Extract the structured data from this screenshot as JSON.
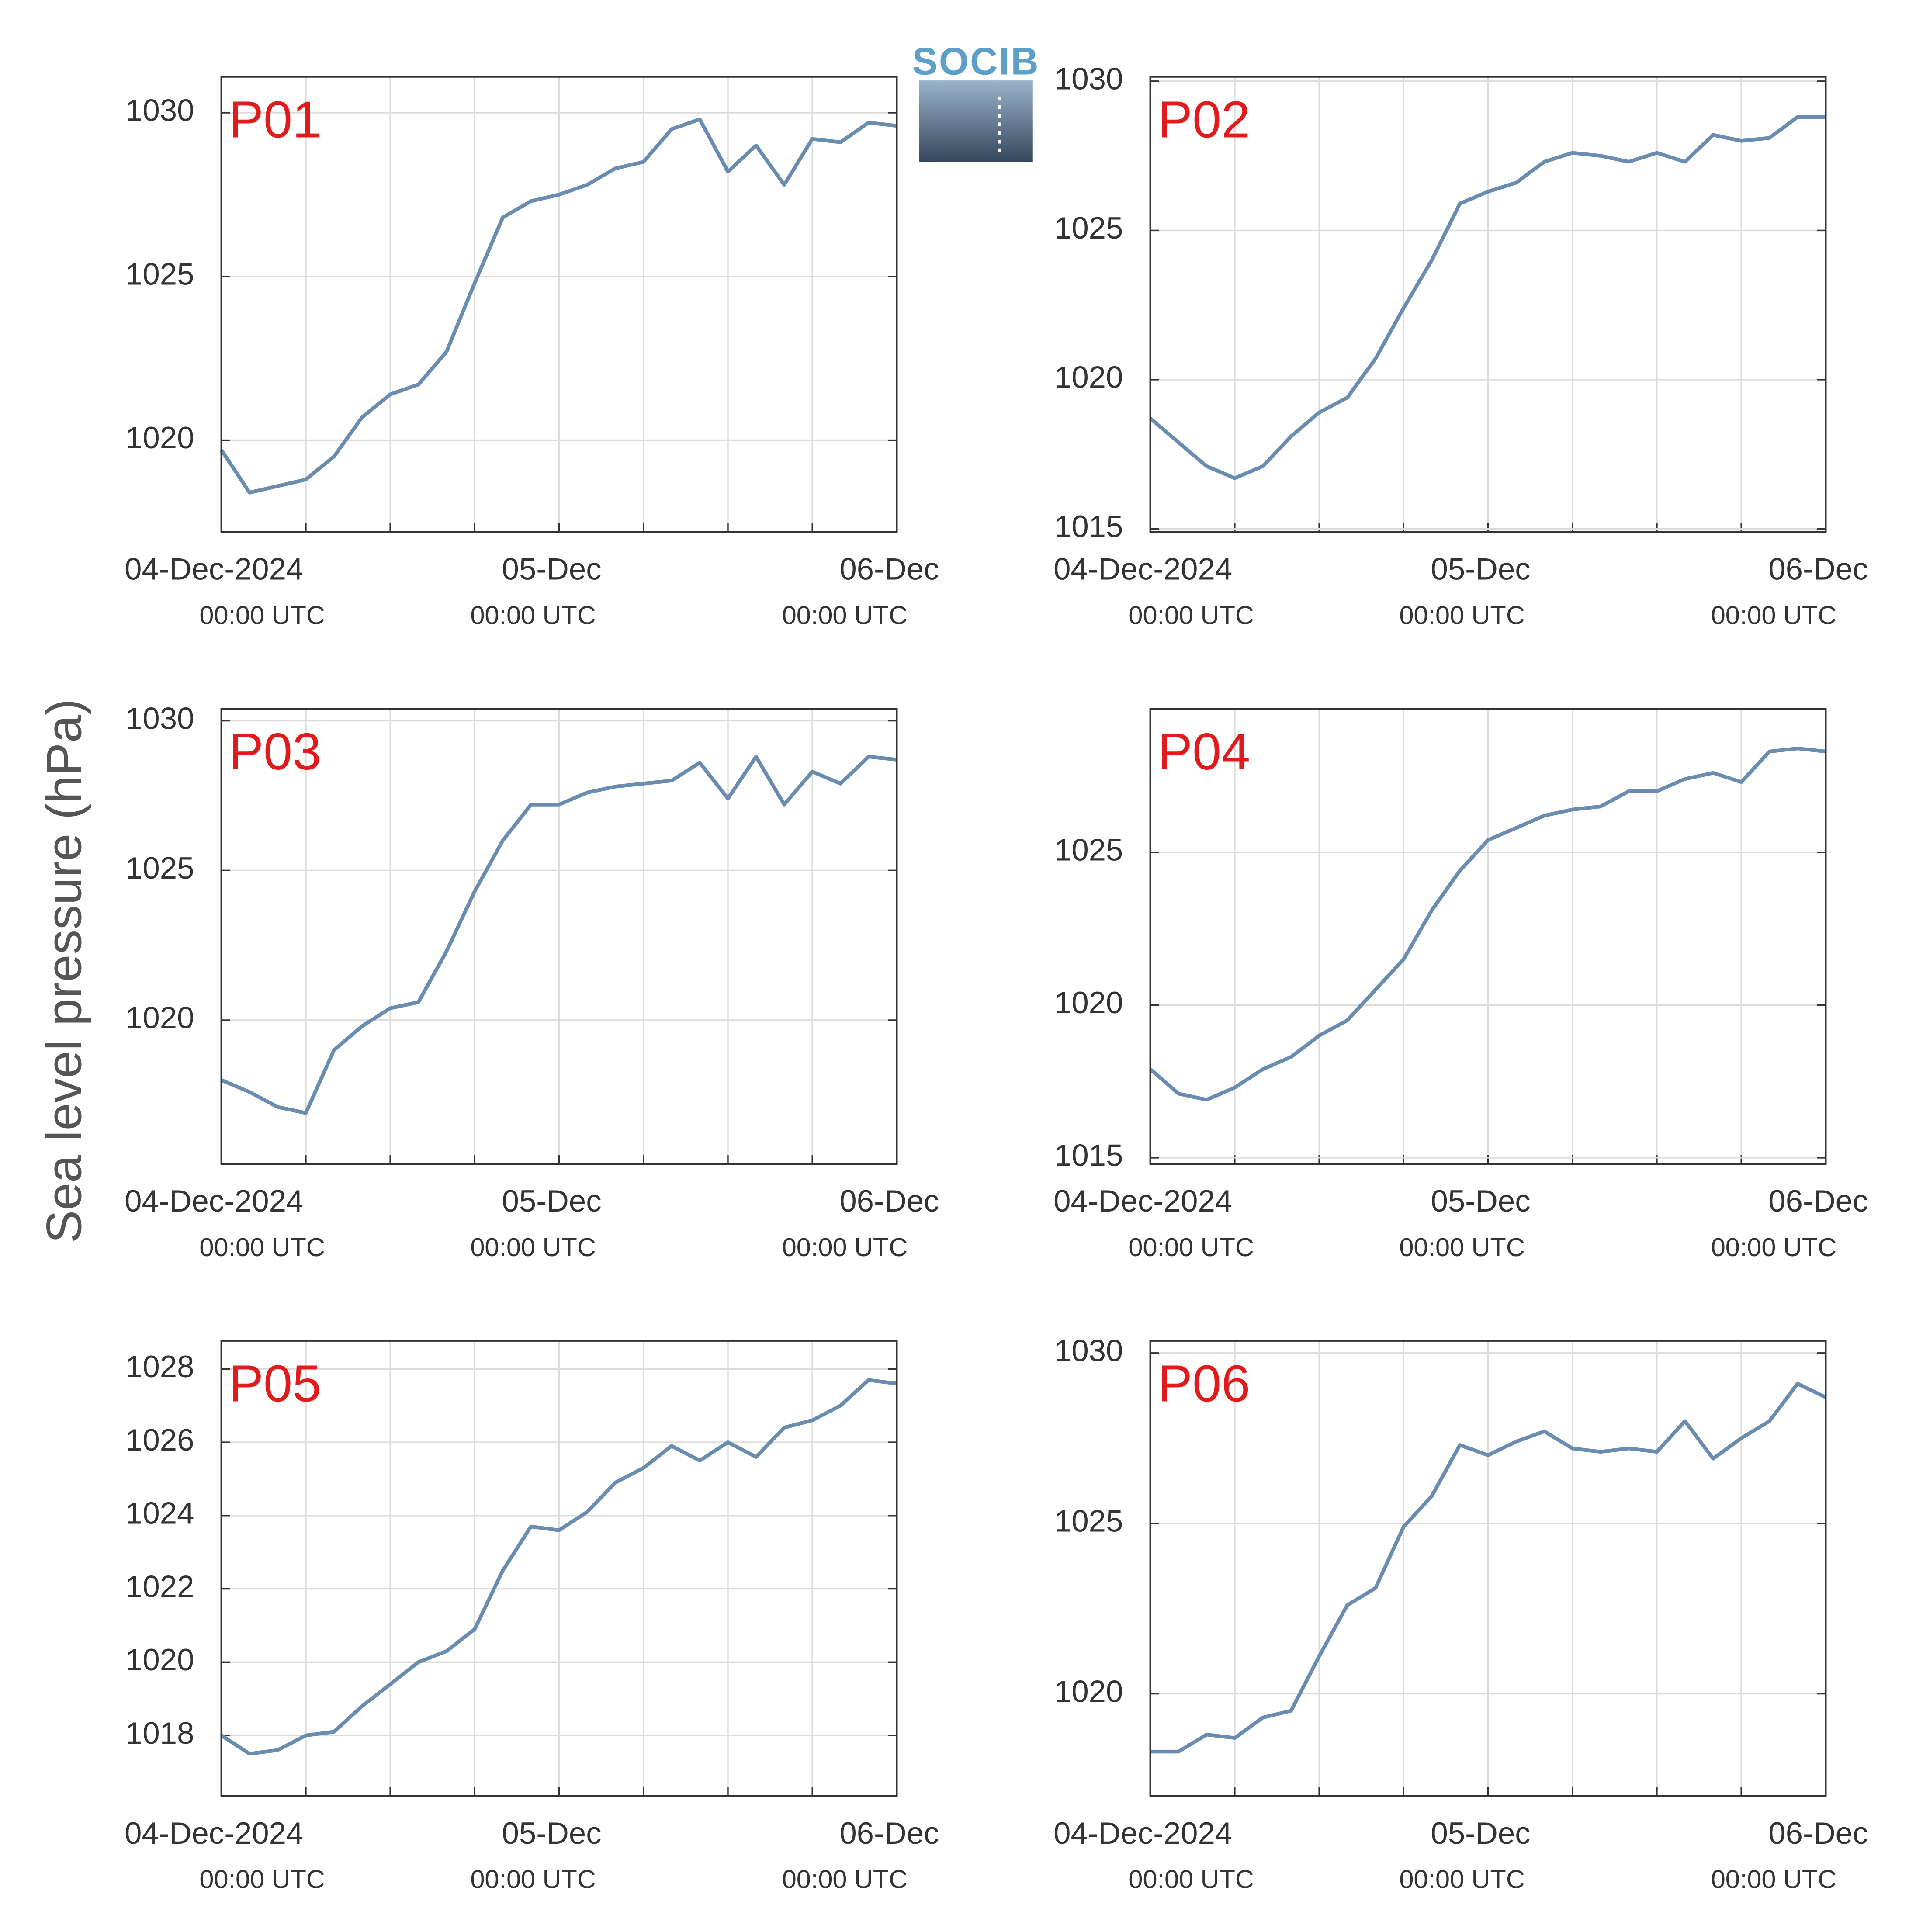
{
  "ylabel": "Sea level pressure (hPa)",
  "logo": "SOCIB",
  "chart_data": [
    {
      "type": "line",
      "title": "P01",
      "color": "#6a8caf",
      "grid": true,
      "x": [
        "2024-12-04T00:00",
        "2024-12-04T02:00",
        "2024-12-04T04:00",
        "2024-12-04T06:00",
        "2024-12-04T08:00",
        "2024-12-04T10:00",
        "2024-12-04T12:00",
        "2024-12-04T14:00",
        "2024-12-04T16:00",
        "2024-12-04T18:00",
        "2024-12-04T20:00",
        "2024-12-04T22:00",
        "2024-12-05T00:00",
        "2024-12-05T02:00",
        "2024-12-05T04:00",
        "2024-12-05T06:00",
        "2024-12-05T08:00",
        "2024-12-05T10:00",
        "2024-12-05T12:00",
        "2024-12-05T14:00",
        "2024-12-05T16:00",
        "2024-12-05T18:00",
        "2024-12-05T20:00",
        "2024-12-05T22:00",
        "2024-12-06T00:00"
      ],
      "values": [
        1019.7,
        1018.4,
        1018.6,
        1018.8,
        1019.5,
        1020.7,
        1021.4,
        1021.7,
        1022.7,
        1024.8,
        1026.8,
        1027.3,
        1027.5,
        1027.8,
        1028.3,
        1028.5,
        1029.5,
        1029.8,
        1028.2,
        1029.0,
        1027.8,
        1029.2,
        1029.1,
        1029.7,
        1029.6
      ],
      "xlim": [
        "2024-12-04T00:00",
        "2024-12-06T00:00"
      ],
      "xticks": [
        {
          "value": "2024-12-04T00:00",
          "label": "04-Dec-2024",
          "sublabel": "00:00 UTC"
        },
        {
          "value": "2024-12-04T06:00",
          "label": null
        },
        {
          "value": "2024-12-04T12:00",
          "label": null
        },
        {
          "value": "2024-12-04T18:00",
          "label": null
        },
        {
          "value": "2024-12-05T00:00",
          "label": "05-Dec",
          "sublabel": "00:00 UTC"
        },
        {
          "value": "2024-12-05T06:00",
          "label": null
        },
        {
          "value": "2024-12-05T12:00",
          "label": null
        },
        {
          "value": "2024-12-05T18:00",
          "label": null
        },
        {
          "value": "2024-12-06T00:00",
          "label": "06-Dec",
          "sublabel": "00:00 UTC"
        }
      ],
      "ylim": [
        1017.2,
        1031.1
      ],
      "yticks": [
        1020,
        1025,
        1030
      ]
    },
    {
      "type": "line",
      "title": "P02",
      "color": "#6a8caf",
      "grid": true,
      "x": [
        "2024-12-04T00:00",
        "2024-12-04T02:00",
        "2024-12-04T04:00",
        "2024-12-04T06:00",
        "2024-12-04T08:00",
        "2024-12-04T10:00",
        "2024-12-04T12:00",
        "2024-12-04T14:00",
        "2024-12-04T16:00",
        "2024-12-04T18:00",
        "2024-12-04T20:00",
        "2024-12-04T22:00",
        "2024-12-05T00:00",
        "2024-12-05T02:00",
        "2024-12-05T04:00",
        "2024-12-05T06:00",
        "2024-12-05T08:00",
        "2024-12-05T10:00",
        "2024-12-05T12:00",
        "2024-12-05T14:00",
        "2024-12-05T16:00",
        "2024-12-05T18:00",
        "2024-12-05T20:00",
        "2024-12-05T22:00",
        "2024-12-06T00:00"
      ],
      "values": [
        1018.7,
        1017.9,
        1017.1,
        1016.7,
        1017.1,
        1018.1,
        1018.9,
        1019.4,
        1020.7,
        1022.4,
        1024.0,
        1025.9,
        1026.3,
        1026.6,
        1027.3,
        1027.6,
        1027.5,
        1027.3,
        1027.6,
        1027.3,
        1028.2,
        1028.0,
        1028.1,
        1028.8,
        1028.8
      ],
      "xlim": [
        "2024-12-04T00:00",
        "2024-12-06T00:00"
      ],
      "xticks": [
        {
          "value": "2024-12-04T00:00",
          "label": "04-Dec-2024",
          "sublabel": "00:00 UTC"
        },
        {
          "value": "2024-12-04T06:00",
          "label": null
        },
        {
          "value": "2024-12-04T12:00",
          "label": null
        },
        {
          "value": "2024-12-04T18:00",
          "label": null
        },
        {
          "value": "2024-12-05T00:00",
          "label": "05-Dec",
          "sublabel": "00:00 UTC"
        },
        {
          "value": "2024-12-05T06:00",
          "label": null
        },
        {
          "value": "2024-12-05T12:00",
          "label": null
        },
        {
          "value": "2024-12-05T18:00",
          "label": null
        },
        {
          "value": "2024-12-06T00:00",
          "label": "06-Dec",
          "sublabel": "00:00 UTC"
        }
      ],
      "ylim": [
        1014.9,
        1030.15
      ],
      "yticks": [
        1015,
        1020,
        1025,
        1030
      ]
    },
    {
      "type": "line",
      "title": "P03",
      "color": "#6a8caf",
      "grid": true,
      "x": [
        "2024-12-04T00:00",
        "2024-12-04T02:00",
        "2024-12-04T04:00",
        "2024-12-04T06:00",
        "2024-12-04T08:00",
        "2024-12-04T10:00",
        "2024-12-04T12:00",
        "2024-12-04T14:00",
        "2024-12-04T16:00",
        "2024-12-04T18:00",
        "2024-12-04T20:00",
        "2024-12-04T22:00",
        "2024-12-05T00:00",
        "2024-12-05T02:00",
        "2024-12-05T04:00",
        "2024-12-05T06:00",
        "2024-12-05T08:00",
        "2024-12-05T10:00",
        "2024-12-05T12:00",
        "2024-12-05T14:00",
        "2024-12-05T16:00",
        "2024-12-05T18:00",
        "2024-12-05T20:00",
        "2024-12-05T22:00",
        "2024-12-06T00:00"
      ],
      "values": [
        1018.0,
        1017.6,
        1017.1,
        1016.9,
        1019.0,
        1019.8,
        1020.4,
        1020.6,
        1022.3,
        1024.3,
        1026.0,
        1027.2,
        1027.2,
        1027.6,
        1027.8,
        1027.9,
        1028.0,
        1028.6,
        1027.4,
        1028.8,
        1027.2,
        1028.3,
        1027.9,
        1028.8,
        1028.7
      ],
      "xlim": [
        "2024-12-04T00:00",
        "2024-12-06T00:00"
      ],
      "xticks": [
        {
          "value": "2024-12-04T00:00",
          "label": "04-Dec-2024",
          "sublabel": "00:00 UTC"
        },
        {
          "value": "2024-12-04T06:00",
          "label": null
        },
        {
          "value": "2024-12-04T12:00",
          "label": null
        },
        {
          "value": "2024-12-04T18:00",
          "label": null
        },
        {
          "value": "2024-12-05T00:00",
          "label": "05-Dec",
          "sublabel": "00:00 UTC"
        },
        {
          "value": "2024-12-05T06:00",
          "label": null
        },
        {
          "value": "2024-12-05T12:00",
          "label": null
        },
        {
          "value": "2024-12-05T18:00",
          "label": null
        },
        {
          "value": "2024-12-06T00:00",
          "label": "06-Dec",
          "sublabel": "00:00 UTC"
        }
      ],
      "ylim": [
        1015.2,
        1030.4
      ],
      "yticks": [
        1020,
        1025,
        1030
      ]
    },
    {
      "type": "line",
      "title": "P04",
      "color": "#6a8caf",
      "grid": true,
      "x": [
        "2024-12-04T00:00",
        "2024-12-04T02:00",
        "2024-12-04T04:00",
        "2024-12-04T06:00",
        "2024-12-04T08:00",
        "2024-12-04T10:00",
        "2024-12-04T12:00",
        "2024-12-04T14:00",
        "2024-12-04T16:00",
        "2024-12-04T18:00",
        "2024-12-04T20:00",
        "2024-12-04T22:00",
        "2024-12-05T00:00",
        "2024-12-05T02:00",
        "2024-12-05T04:00",
        "2024-12-05T06:00",
        "2024-12-05T08:00",
        "2024-12-05T10:00",
        "2024-12-05T12:00",
        "2024-12-05T14:00",
        "2024-12-05T16:00",
        "2024-12-05T18:00",
        "2024-12-05T20:00",
        "2024-12-05T22:00",
        "2024-12-06T00:00"
      ],
      "values": [
        1017.9,
        1017.1,
        1016.9,
        1017.3,
        1017.9,
        1018.3,
        1019.0,
        1019.5,
        1020.5,
        1021.5,
        1023.1,
        1024.4,
        1025.4,
        1025.8,
        1026.2,
        1026.4,
        1026.5,
        1027.0,
        1027.0,
        1027.4,
        1027.6,
        1027.3,
        1028.3,
        1028.4,
        1028.3
      ],
      "xlim": [
        "2024-12-04T00:00",
        "2024-12-06T00:00"
      ],
      "xticks": [
        {
          "value": "2024-12-04T00:00",
          "label": "04-Dec-2024",
          "sublabel": "00:00 UTC"
        },
        {
          "value": "2024-12-04T06:00",
          "label": null
        },
        {
          "value": "2024-12-04T12:00",
          "label": null
        },
        {
          "value": "2024-12-04T18:00",
          "label": null
        },
        {
          "value": "2024-12-05T00:00",
          "label": "05-Dec",
          "sublabel": "00:00 UTC"
        },
        {
          "value": "2024-12-05T06:00",
          "label": null
        },
        {
          "value": "2024-12-05T12:00",
          "label": null
        },
        {
          "value": "2024-12-05T18:00",
          "label": null
        },
        {
          "value": "2024-12-06T00:00",
          "label": "06-Dec",
          "sublabel": "00:00 UTC"
        }
      ],
      "ylim": [
        1014.8,
        1029.7
      ],
      "yticks": [
        1015,
        1020,
        1025
      ]
    },
    {
      "type": "line",
      "title": "P05",
      "color": "#6a8caf",
      "grid": true,
      "x": [
        "2024-12-04T00:00",
        "2024-12-04T02:00",
        "2024-12-04T04:00",
        "2024-12-04T06:00",
        "2024-12-04T08:00",
        "2024-12-04T10:00",
        "2024-12-04T12:00",
        "2024-12-04T14:00",
        "2024-12-04T16:00",
        "2024-12-04T18:00",
        "2024-12-04T20:00",
        "2024-12-04T22:00",
        "2024-12-05T00:00",
        "2024-12-05T02:00",
        "2024-12-05T04:00",
        "2024-12-05T06:00",
        "2024-12-05T08:00",
        "2024-12-05T10:00",
        "2024-12-05T12:00",
        "2024-12-05T14:00",
        "2024-12-05T16:00",
        "2024-12-05T18:00",
        "2024-12-05T20:00",
        "2024-12-05T22:00",
        "2024-12-06T00:00"
      ],
      "values": [
        1018.0,
        1017.5,
        1017.6,
        1018.0,
        1018.1,
        1018.8,
        1019.4,
        1020.0,
        1020.3,
        1020.9,
        1022.5,
        1023.7,
        1023.6,
        1024.1,
        1024.9,
        1025.3,
        1025.9,
        1025.5,
        1026.0,
        1025.6,
        1026.4,
        1026.6,
        1027.0,
        1027.7,
        1027.6
      ],
      "xlim": [
        "2024-12-04T00:00",
        "2024-12-06T00:00"
      ],
      "xticks": [
        {
          "value": "2024-12-04T00:00",
          "label": "04-Dec-2024",
          "sublabel": "00:00 UTC"
        },
        {
          "value": "2024-12-04T06:00",
          "label": null
        },
        {
          "value": "2024-12-04T12:00",
          "label": null
        },
        {
          "value": "2024-12-04T18:00",
          "label": null
        },
        {
          "value": "2024-12-05T00:00",
          "label": "05-Dec",
          "sublabel": "00:00 UTC"
        },
        {
          "value": "2024-12-05T06:00",
          "label": null
        },
        {
          "value": "2024-12-05T12:00",
          "label": null
        },
        {
          "value": "2024-12-05T18:00",
          "label": null
        },
        {
          "value": "2024-12-06T00:00",
          "label": "06-Dec",
          "sublabel": "00:00 UTC"
        }
      ],
      "ylim": [
        1016.35,
        1028.77
      ],
      "yticks": [
        1018,
        1020,
        1022,
        1024,
        1026,
        1028
      ]
    },
    {
      "type": "line",
      "title": "P06",
      "color": "#6a8caf",
      "grid": true,
      "x": [
        "2024-12-04T00:00",
        "2024-12-04T02:00",
        "2024-12-04T04:00",
        "2024-12-04T06:00",
        "2024-12-04T08:00",
        "2024-12-04T10:00",
        "2024-12-04T12:00",
        "2024-12-04T14:00",
        "2024-12-04T16:00",
        "2024-12-04T18:00",
        "2024-12-04T20:00",
        "2024-12-04T22:00",
        "2024-12-05T00:00",
        "2024-12-05T02:00",
        "2024-12-05T04:00",
        "2024-12-05T06:00",
        "2024-12-05T08:00",
        "2024-12-05T10:00",
        "2024-12-05T12:00",
        "2024-12-05T14:00",
        "2024-12-05T16:00",
        "2024-12-05T18:00",
        "2024-12-05T20:00",
        "2024-12-05T22:00",
        "2024-12-06T00:00"
      ],
      "values": [
        1018.3,
        1018.3,
        1018.8,
        1018.7,
        1019.3,
        1019.5,
        1021.1,
        1022.6,
        1023.1,
        1024.9,
        1025.8,
        1027.3,
        1027.0,
        1027.4,
        1027.7,
        1027.2,
        1027.1,
        1027.2,
        1027.1,
        1028.0,
        1026.9,
        1027.5,
        1028.0,
        1029.1,
        1028.7
      ],
      "xlim": [
        "2024-12-04T00:00",
        "2024-12-06T00:00"
      ],
      "xticks": [
        {
          "value": "2024-12-04T00:00",
          "label": "04-Dec-2024",
          "sublabel": "00:00 UTC"
        },
        {
          "value": "2024-12-04T06:00",
          "label": null
        },
        {
          "value": "2024-12-04T12:00",
          "label": null
        },
        {
          "value": "2024-12-04T18:00",
          "label": null
        },
        {
          "value": "2024-12-05T00:00",
          "label": "05-Dec",
          "sublabel": "00:00 UTC"
        },
        {
          "value": "2024-12-05T06:00",
          "label": null
        },
        {
          "value": "2024-12-05T12:00",
          "label": null
        },
        {
          "value": "2024-12-05T18:00",
          "label": null
        },
        {
          "value": "2024-12-06T00:00",
          "label": "06-Dec",
          "sublabel": "00:00 UTC"
        }
      ],
      "ylim": [
        1017.0,
        1030.36
      ],
      "yticks": [
        1020,
        1025,
        1030
      ]
    }
  ]
}
